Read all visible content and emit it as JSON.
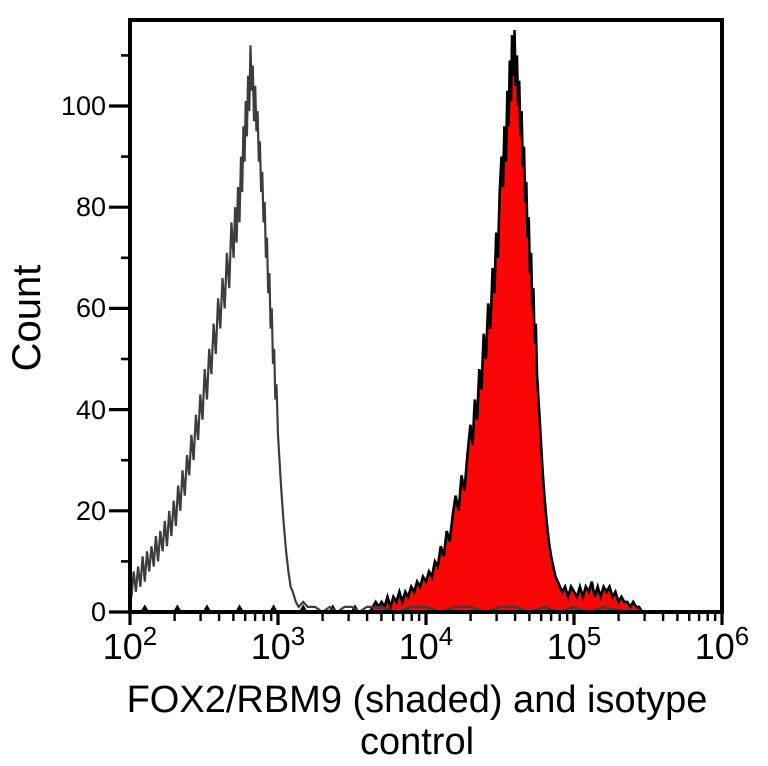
{
  "chart_data": {
    "type": "histogram",
    "subtype": "flow-cytometry-overlay",
    "title": "FOX2/RBM9 (shaded) and isotype control",
    "xlabel": "FOX2/RBM9 (shaded) and isotype control",
    "ylabel": "Count",
    "x_scale": "log10",
    "x_range_log10": [
      2,
      6
    ],
    "ylim": [
      0,
      117
    ],
    "grid": false,
    "legend": "none",
    "frame_color": "#000000",
    "background_color": "#ffffff",
    "y_major_ticks": [
      0,
      20,
      40,
      60,
      80,
      100
    ],
    "y_minor_ticks": [
      10,
      30,
      50,
      70,
      90,
      110
    ],
    "x_major_ticks": [
      {
        "base": "10",
        "exp": "2",
        "log10": 2
      },
      {
        "base": "10",
        "exp": "3",
        "log10": 3
      },
      {
        "base": "10",
        "exp": "4",
        "log10": 4
      },
      {
        "base": "10",
        "exp": "5",
        "log10": 5
      },
      {
        "base": "10",
        "exp": "6",
        "log10": 6
      }
    ],
    "x_minor_tick_multiples": [
      2,
      3,
      4,
      5,
      6,
      7,
      8,
      9
    ],
    "series": [
      {
        "name": "isotype control",
        "style": "open",
        "fill": "none",
        "stroke": "#3d3d3d",
        "stroke_width": 2.2,
        "peak_log10x": 2.81,
        "peak_count": 112,
        "points": [
          [
            2.0,
            0
          ],
          [
            2.0,
            7
          ],
          [
            2.01,
            3
          ],
          [
            2.025,
            8
          ],
          [
            2.04,
            4
          ],
          [
            2.055,
            9
          ],
          [
            2.07,
            5
          ],
          [
            2.085,
            11
          ],
          [
            2.1,
            6
          ],
          [
            2.115,
            12
          ],
          [
            2.13,
            8
          ],
          [
            2.145,
            13
          ],
          [
            2.16,
            9
          ],
          [
            2.175,
            15
          ],
          [
            2.19,
            10
          ],
          [
            2.205,
            16
          ],
          [
            2.22,
            12
          ],
          [
            2.235,
            18
          ],
          [
            2.25,
            13
          ],
          [
            2.265,
            20
          ],
          [
            2.28,
            15
          ],
          [
            2.295,
            22
          ],
          [
            2.31,
            17
          ],
          [
            2.325,
            25
          ],
          [
            2.34,
            20
          ],
          [
            2.355,
            28
          ],
          [
            2.37,
            23
          ],
          [
            2.385,
            31
          ],
          [
            2.4,
            27
          ],
          [
            2.415,
            35
          ],
          [
            2.43,
            30
          ],
          [
            2.445,
            39
          ],
          [
            2.46,
            34
          ],
          [
            2.475,
            43
          ],
          [
            2.49,
            38
          ],
          [
            2.505,
            48
          ],
          [
            2.52,
            42
          ],
          [
            2.535,
            52
          ],
          [
            2.55,
            47
          ],
          [
            2.565,
            57
          ],
          [
            2.58,
            51
          ],
          [
            2.595,
            62
          ],
          [
            2.61,
            56
          ],
          [
            2.625,
            66
          ],
          [
            2.64,
            60
          ],
          [
            2.655,
            71
          ],
          [
            2.67,
            64
          ],
          [
            2.685,
            77
          ],
          [
            2.7,
            70
          ],
          [
            2.71,
            80
          ],
          [
            2.72,
            73
          ],
          [
            2.73,
            84
          ],
          [
            2.74,
            77
          ],
          [
            2.75,
            90
          ],
          [
            2.758,
            83
          ],
          [
            2.766,
            96
          ],
          [
            2.774,
            89
          ],
          [
            2.782,
            101
          ],
          [
            2.79,
            94
          ],
          [
            2.798,
            106
          ],
          [
            2.806,
            99
          ],
          [
            2.814,
            112
          ],
          [
            2.822,
            103
          ],
          [
            2.83,
            108
          ],
          [
            2.838,
            97
          ],
          [
            2.846,
            104
          ],
          [
            2.854,
            95
          ],
          [
            2.862,
            99
          ],
          [
            2.87,
            89
          ],
          [
            2.878,
            93
          ],
          [
            2.886,
            83
          ],
          [
            2.894,
            87
          ],
          [
            2.902,
            77
          ],
          [
            2.91,
            81
          ],
          [
            2.918,
            70
          ],
          [
            2.926,
            74
          ],
          [
            2.934,
            63
          ],
          [
            2.942,
            67
          ],
          [
            2.95,
            56
          ],
          [
            2.958,
            60
          ],
          [
            2.966,
            49
          ],
          [
            2.974,
            52
          ],
          [
            2.982,
            42
          ],
          [
            2.99,
            45
          ],
          [
            3.0,
            35
          ],
          [
            3.01,
            30
          ],
          [
            3.02,
            25
          ],
          [
            3.03,
            21
          ],
          [
            3.04,
            17
          ],
          [
            3.055,
            12
          ],
          [
            3.07,
            8
          ],
          [
            3.085,
            5
          ],
          [
            3.1,
            4
          ],
          [
            3.12,
            2
          ],
          [
            3.14,
            1
          ],
          [
            3.17,
            2
          ],
          [
            3.2,
            1
          ],
          [
            3.25,
            1
          ],
          [
            3.3,
            0
          ],
          [
            3.35,
            1
          ],
          [
            3.4,
            0
          ],
          [
            3.45,
            1
          ],
          [
            3.5,
            1
          ],
          [
            3.55,
            0
          ],
          [
            3.6,
            1
          ],
          [
            3.7,
            1
          ],
          [
            3.8,
            0
          ],
          [
            3.9,
            1
          ],
          [
            4.0,
            1
          ],
          [
            4.1,
            0
          ],
          [
            4.2,
            1
          ],
          [
            4.3,
            1
          ],
          [
            4.4,
            0
          ],
          [
            4.5,
            1
          ],
          [
            4.6,
            1
          ],
          [
            4.7,
            0
          ],
          [
            4.8,
            1
          ],
          [
            4.9,
            0
          ],
          [
            5.0,
            1
          ],
          [
            5.1,
            0
          ],
          [
            5.2,
            1
          ],
          [
            5.35,
            0
          ],
          [
            5.5,
            0
          ],
          [
            6.0,
            0
          ]
        ]
      },
      {
        "name": "FOX2/RBM9 (shaded)",
        "style": "filled",
        "fill": "#fb0606",
        "stroke": "#000000",
        "stroke_width": 2.6,
        "peak_log10x": 4.6,
        "peak_count": 115,
        "points": [
          [
            2.0,
            0
          ],
          [
            2.08,
            0
          ],
          [
            2.1,
            1
          ],
          [
            2.12,
            0
          ],
          [
            2.3,
            0
          ],
          [
            2.32,
            1
          ],
          [
            2.34,
            0
          ],
          [
            2.5,
            0
          ],
          [
            2.52,
            1
          ],
          [
            2.54,
            0
          ],
          [
            2.72,
            0
          ],
          [
            2.74,
            1
          ],
          [
            2.76,
            0
          ],
          [
            2.95,
            0
          ],
          [
            2.97,
            1
          ],
          [
            2.99,
            0
          ],
          [
            3.15,
            0
          ],
          [
            3.17,
            1
          ],
          [
            3.19,
            0
          ],
          [
            3.35,
            0
          ],
          [
            3.37,
            1
          ],
          [
            3.39,
            0
          ],
          [
            3.5,
            0
          ],
          [
            3.52,
            1
          ],
          [
            3.54,
            0
          ],
          [
            3.62,
            0
          ],
          [
            3.64,
            1
          ],
          [
            3.66,
            2
          ],
          [
            3.68,
            1
          ],
          [
            3.7,
            2
          ],
          [
            3.72,
            1
          ],
          [
            3.74,
            3
          ],
          [
            3.76,
            1
          ],
          [
            3.78,
            3
          ],
          [
            3.8,
            2
          ],
          [
            3.82,
            4
          ],
          [
            3.84,
            2
          ],
          [
            3.86,
            4
          ],
          [
            3.88,
            3
          ],
          [
            3.9,
            5
          ],
          [
            3.92,
            4
          ],
          [
            3.94,
            6
          ],
          [
            3.96,
            5
          ],
          [
            3.98,
            7
          ],
          [
            4.0,
            6
          ],
          [
            4.02,
            8
          ],
          [
            4.04,
            7
          ],
          [
            4.06,
            10
          ],
          [
            4.08,
            9
          ],
          [
            4.1,
            13
          ],
          [
            4.12,
            11
          ],
          [
            4.14,
            16
          ],
          [
            4.16,
            14
          ],
          [
            4.18,
            19
          ],
          [
            4.2,
            23
          ],
          [
            4.22,
            20
          ],
          [
            4.24,
            27
          ],
          [
            4.26,
            24
          ],
          [
            4.28,
            31
          ],
          [
            4.3,
            37
          ],
          [
            4.315,
            33
          ],
          [
            4.33,
            42
          ],
          [
            4.345,
            38
          ],
          [
            4.36,
            48
          ],
          [
            4.375,
            44
          ],
          [
            4.39,
            55
          ],
          [
            4.405,
            50
          ],
          [
            4.42,
            61
          ],
          [
            4.435,
            56
          ],
          [
            4.45,
            68
          ],
          [
            4.462,
            63
          ],
          [
            4.474,
            75
          ],
          [
            4.486,
            70
          ],
          [
            4.498,
            83
          ],
          [
            4.51,
            90
          ],
          [
            4.52,
            84
          ],
          [
            4.53,
            96
          ],
          [
            4.54,
            89
          ],
          [
            4.55,
            103
          ],
          [
            4.558,
            96
          ],
          [
            4.566,
            109
          ],
          [
            4.574,
            101
          ],
          [
            4.582,
            114
          ],
          [
            4.59,
            106
          ],
          [
            4.598,
            115
          ],
          [
            4.606,
            104
          ],
          [
            4.614,
            110
          ],
          [
            4.622,
            100
          ],
          [
            4.63,
            105
          ],
          [
            4.638,
            94
          ],
          [
            4.646,
            99
          ],
          [
            4.654,
            88
          ],
          [
            4.662,
            92
          ],
          [
            4.67,
            81
          ],
          [
            4.678,
            85
          ],
          [
            4.686,
            74
          ],
          [
            4.694,
            78
          ],
          [
            4.702,
            67
          ],
          [
            4.71,
            71
          ],
          [
            4.718,
            60
          ],
          [
            4.726,
            64
          ],
          [
            4.734,
            53
          ],
          [
            4.742,
            57
          ],
          [
            4.75,
            47
          ],
          [
            4.76,
            42
          ],
          [
            4.77,
            37
          ],
          [
            4.78,
            32
          ],
          [
            4.79,
            27
          ],
          [
            4.8,
            23
          ],
          [
            4.815,
            18
          ],
          [
            4.83,
            14
          ],
          [
            4.845,
            11
          ],
          [
            4.86,
            9
          ],
          [
            4.875,
            7
          ],
          [
            4.89,
            6
          ],
          [
            4.905,
            5
          ],
          [
            4.92,
            4
          ],
          [
            4.94,
            5
          ],
          [
            4.96,
            3
          ],
          [
            4.98,
            5
          ],
          [
            5.0,
            4
          ],
          [
            5.02,
            3
          ],
          [
            5.04,
            5
          ],
          [
            5.06,
            3
          ],
          [
            5.08,
            5
          ],
          [
            5.1,
            4
          ],
          [
            5.12,
            6
          ],
          [
            5.14,
            3
          ],
          [
            5.16,
            5
          ],
          [
            5.18,
            3
          ],
          [
            5.2,
            5
          ],
          [
            5.22,
            4
          ],
          [
            5.24,
            5
          ],
          [
            5.26,
            3
          ],
          [
            5.28,
            4
          ],
          [
            5.3,
            2
          ],
          [
            5.32,
            3
          ],
          [
            5.34,
            2
          ],
          [
            5.36,
            2
          ],
          [
            5.38,
            1
          ],
          [
            5.4,
            2
          ],
          [
            5.42,
            1
          ],
          [
            5.44,
            1
          ],
          [
            5.46,
            0
          ],
          [
            5.5,
            0
          ]
        ]
      }
    ]
  }
}
